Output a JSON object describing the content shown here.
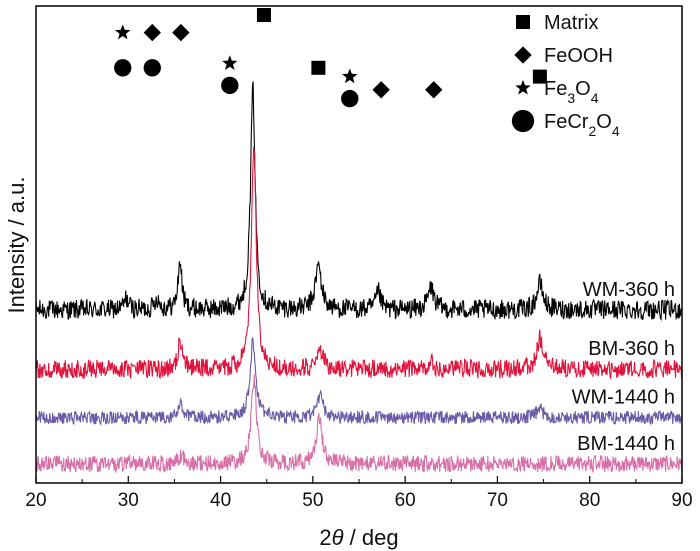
{
  "chart_data": {
    "type": "line",
    "title": "",
    "xlim": [
      20,
      90
    ],
    "x_ticks": [
      "20",
      "30",
      "40",
      "50",
      "60",
      "70",
      "80",
      "90"
    ],
    "xlabel": {
      "symbol": "2",
      "italic": "θ",
      "rest": " / deg"
    },
    "ylabel": "Intensity / a.u.",
    "grid": false,
    "legend_position": "top-right",
    "legend": [
      {
        "marker": "square",
        "label": "Matrix"
      },
      {
        "marker": "diamond",
        "label": "FeOOH"
      },
      {
        "marker": "star",
        "label": "Fe3O4",
        "parts": [
          [
            "Fe",
            ""
          ],
          [
            "3",
            "sub"
          ],
          [
            "O",
            ""
          ],
          [
            "4",
            "sub"
          ]
        ]
      },
      {
        "marker": "circle",
        "label": "FeCr2O4",
        "parts": [
          [
            "FeCr",
            ""
          ],
          [
            "2",
            "sub"
          ],
          [
            "O",
            ""
          ],
          [
            "4",
            "sub"
          ]
        ]
      }
    ],
    "series": [
      {
        "name": "WM-360 h",
        "color": "#000000",
        "baseline": 0.66,
        "noise": 0.09,
        "peaks": [
          [
            29.8,
            0.05,
            0.3
          ],
          [
            33.1,
            0.05,
            0.3
          ],
          [
            35.6,
            0.22,
            0.25
          ],
          [
            43.5,
            1.0,
            0.3
          ],
          [
            50.6,
            0.2,
            0.4
          ],
          [
            57.1,
            0.08,
            0.3
          ],
          [
            62.8,
            0.1,
            0.4
          ],
          [
            74.6,
            0.12,
            0.4
          ]
        ]
      },
      {
        "name": "BM-360 h",
        "color": "#e0143c",
        "baseline": 0.39,
        "noise": 0.085,
        "peaks": [
          [
            35.6,
            0.12,
            0.3
          ],
          [
            43.6,
            1.05,
            0.3
          ],
          [
            50.8,
            0.08,
            0.4
          ],
          [
            62.8,
            0.04,
            0.3
          ],
          [
            74.6,
            0.14,
            0.4
          ]
        ]
      },
      {
        "name": "WM-1440 h",
        "color": "#6a5aa8",
        "baseline": 0.17,
        "noise": 0.06,
        "peaks": [
          [
            35.7,
            0.06,
            0.3
          ],
          [
            43.5,
            0.34,
            0.35
          ],
          [
            50.8,
            0.1,
            0.4
          ],
          [
            74.6,
            0.04,
            0.4
          ]
        ]
      },
      {
        "name": "BM-1440 h",
        "color": "#d870a8",
        "baseline": -0.04,
        "noise": 0.075,
        "peaks": [
          [
            35.7,
            0.04,
            0.3
          ],
          [
            43.6,
            0.38,
            0.35
          ],
          [
            50.7,
            0.2,
            0.4
          ]
        ]
      }
    ],
    "peak_markers": [
      {
        "marker": "square",
        "x": 44.7,
        "level": 1.0
      },
      {
        "marker": "star",
        "x": 29.4,
        "level": 0.96
      },
      {
        "marker": "diamond",
        "x": 32.6,
        "level": 0.96
      },
      {
        "marker": "diamond",
        "x": 35.7,
        "level": 0.96
      },
      {
        "marker": "circle",
        "x": 29.4,
        "level": 0.88
      },
      {
        "marker": "circle",
        "x": 32.6,
        "level": 0.88
      },
      {
        "marker": "star",
        "x": 41.0,
        "level": 0.89
      },
      {
        "marker": "circle",
        "x": 41.0,
        "level": 0.84
      },
      {
        "marker": "square",
        "x": 50.6,
        "level": 0.88
      },
      {
        "marker": "star",
        "x": 54.0,
        "level": 0.86
      },
      {
        "marker": "circle",
        "x": 54.0,
        "level": 0.81
      },
      {
        "marker": "diamond",
        "x": 57.4,
        "level": 0.83
      },
      {
        "marker": "diamond",
        "x": 63.1,
        "level": 0.83
      },
      {
        "marker": "square",
        "x": 74.6,
        "level": 0.86
      }
    ]
  }
}
